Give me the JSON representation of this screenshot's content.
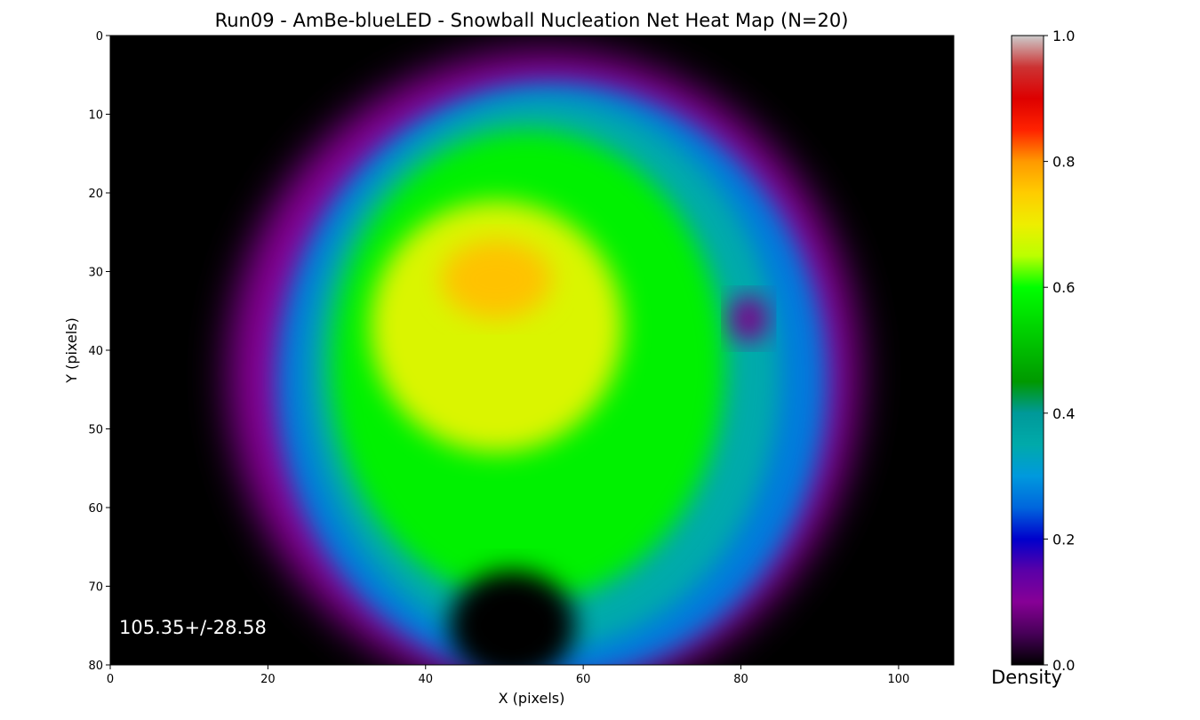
{
  "chart_data": {
    "type": "heatmap",
    "title": "Run09 - AmBe-blueLED - Snowball Nucleation Net Heat Map (N=20)",
    "xlabel": "X (pixels)",
    "ylabel": "Y (pixels)",
    "xlim": [
      0,
      107
    ],
    "ylim": [
      80,
      0
    ],
    "y_inverted": true,
    "x_ticks": [
      "0",
      "20",
      "40",
      "60",
      "80",
      "100"
    ],
    "y_ticks": [
      "0",
      "10",
      "20",
      "30",
      "40",
      "50",
      "60",
      "70",
      "80"
    ],
    "colorbar": {
      "label": "Density",
      "range": [
        0.0,
        1.0
      ],
      "ticks": [
        "0.0",
        "0.2",
        "0.4",
        "0.6",
        "0.8",
        "1.0"
      ],
      "colormap": "nipy_spectral"
    },
    "annotation": "105.35+/-28.58",
    "background_color": "#000000",
    "regions": [
      {
        "description": "outer halo",
        "center_x": 55,
        "center_y": 43,
        "level": 0.1
      },
      {
        "description": "ring",
        "center_x": 56,
        "center_y": 44,
        "level": 0.27
      },
      {
        "description": "mid band",
        "center_x": 55,
        "center_y": 43,
        "level": 0.35
      },
      {
        "description": "core",
        "center_x": 53,
        "center_y": 42,
        "level": 0.58
      },
      {
        "description": "inner core",
        "center_x": 49,
        "center_y": 37,
        "level": 0.68
      },
      {
        "description": "peak",
        "center_x": 49,
        "center_y": 31,
        "level": 0.76
      }
    ],
    "voids": [
      {
        "description": "lower hole",
        "center_x": 51,
        "center_y": 75,
        "level": 0.0
      },
      {
        "description": "right pocket",
        "center_x": 81,
        "center_y": 36,
        "level": 0.09
      }
    ]
  }
}
